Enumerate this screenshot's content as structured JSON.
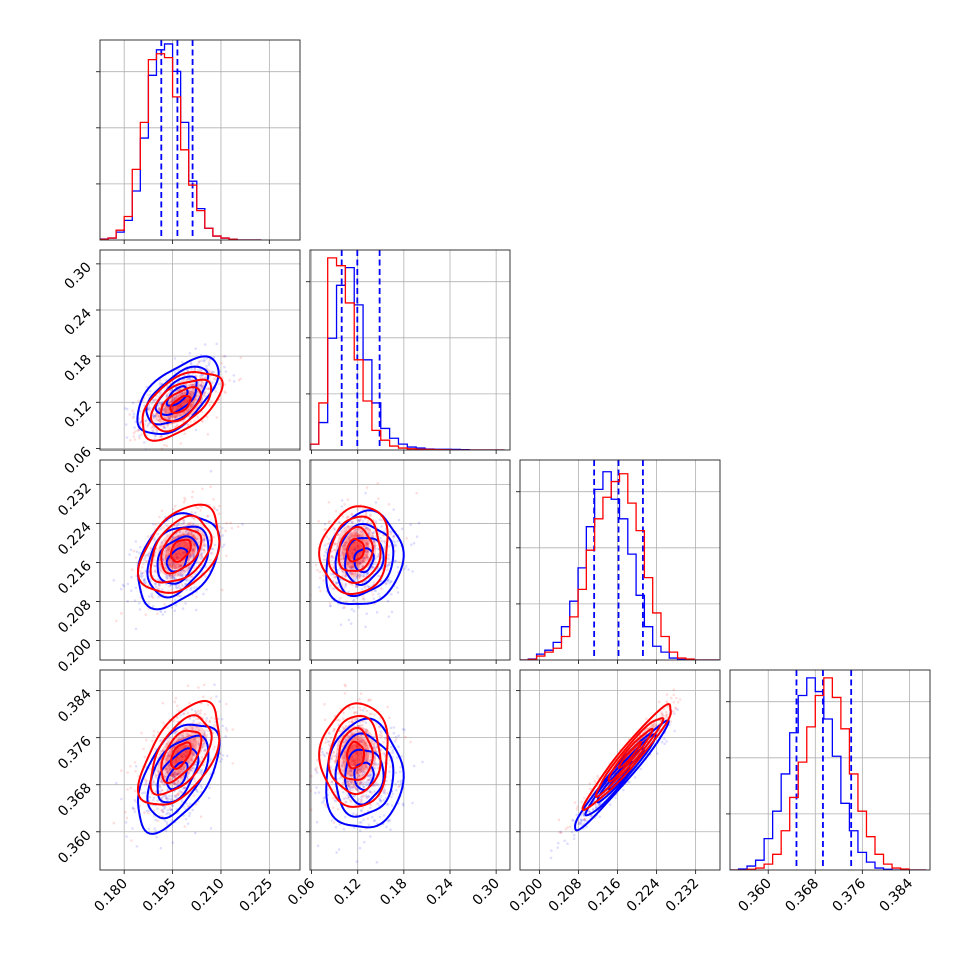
{
  "chart_data": {
    "type": "corner",
    "colors": {
      "series_a": "#0000ff",
      "series_b": "#ff0000"
    },
    "parameters": [
      {
        "range": [
          0.1725,
          0.2345
        ],
        "ticks": [
          "0.180",
          "0.195",
          "0.210",
          "0.225"
        ],
        "tick_values": [
          0.18,
          0.195,
          0.21,
          0.225
        ]
      },
      {
        "range": [
          0.058,
          0.318
        ],
        "ticks": [
          "0.06",
          "0.12",
          "0.18",
          "0.24",
          "0.30"
        ],
        "tick_values": [
          0.06,
          0.12,
          0.18,
          0.24,
          0.3
        ]
      },
      {
        "range": [
          0.196,
          0.237
        ],
        "ticks": [
          "0.200",
          "0.208",
          "0.216",
          "0.224",
          "0.232"
        ],
        "tick_values": [
          0.2,
          0.208,
          0.216,
          0.224,
          0.232
        ]
      },
      {
        "range": [
          0.3535,
          0.3875
        ],
        "ticks": [
          "0.360",
          "0.368",
          "0.376",
          "0.384"
        ],
        "tick_values": [
          0.36,
          0.368,
          0.376,
          0.384
        ]
      }
    ],
    "series": [
      {
        "color": "#0000ff",
        "means": [
          0.1965,
          0.128,
          0.2165,
          0.3695
        ],
        "sds": [
          0.0063,
          0.025,
          0.0048,
          0.0046
        ],
        "quantiles": [
          [
            0.1915,
            0.1965,
            0.2012
          ],
          [
            0.0992,
            0.1195,
            0.1485
          ],
          [
            0.2112,
            0.2162,
            0.2212
          ],
          [
            0.3648,
            0.3693,
            0.3741
          ]
        ],
        "histograms": [
          {
            "start": 0.1725,
            "width": 0.0025,
            "values": [
              0.005,
              0.01,
              0.04,
              0.1,
              0.25,
              0.52,
              0.84,
              0.97,
              1.0,
              0.86,
              0.6,
              0.3,
              0.16,
              0.06,
              0.02,
              0.01,
              0.004,
              0.0,
              0.0,
              0.0
            ]
          },
          {
            "start": 0.058,
            "width": 0.0115,
            "values": [
              0.03,
              0.14,
              0.57,
              0.84,
              0.93,
              0.74,
              0.46,
              0.24,
              0.11,
              0.06,
              0.03,
              0.015,
              0.01,
              0.005,
              0.004,
              0.004,
              0.003,
              0.002,
              0.0,
              0.0,
              0.0,
              0.0
            ]
          },
          {
            "start": 0.196,
            "width": 0.0017,
            "values": [
              0.0,
              0.005,
              0.03,
              0.05,
              0.09,
              0.17,
              0.3,
              0.47,
              0.68,
              0.87,
              0.96,
              0.82,
              0.72,
              0.54,
              0.33,
              0.17,
              0.07,
              0.04,
              0.01,
              0.003,
              0.0,
              0.0,
              0.0,
              0.0
            ]
          },
          {
            "start": 0.3535,
            "width": 0.00145,
            "values": [
              0.0,
              0.005,
              0.02,
              0.05,
              0.16,
              0.3,
              0.49,
              0.7,
              0.89,
              0.98,
              0.91,
              0.77,
              0.58,
              0.34,
              0.2,
              0.09,
              0.04,
              0.01,
              0.004,
              0.0,
              0.0,
              0.0,
              0.0
            ]
          }
        ],
        "correlations": [
          [
            1,
            0.6,
            0.35,
            0.55
          ],
          [
            0.6,
            1,
            0.15,
            0.05
          ],
          [
            0.35,
            0.15,
            1,
            0.97
          ],
          [
            0.55,
            0.05,
            0.97,
            1
          ]
        ]
      },
      {
        "color": "#ff0000",
        "means": [
          0.1975,
          0.117,
          0.2185,
          0.373
        ],
        "sds": [
          0.0062,
          0.022,
          0.0045,
          0.0044
        ],
        "quantiles": [],
        "histograms": [
          {
            "start": 0.1725,
            "width": 0.0025,
            "values": [
              0.004,
              0.01,
              0.05,
              0.12,
              0.36,
              0.6,
              0.92,
              0.95,
              0.93,
              0.73,
              0.46,
              0.28,
              0.15,
              0.06,
              0.02,
              0.01,
              0.004,
              0.0,
              0.0,
              0.0
            ]
          },
          {
            "start": 0.058,
            "width": 0.0115,
            "values": [
              0.03,
              0.24,
              0.98,
              0.94,
              0.75,
              0.46,
              0.25,
              0.1,
              0.05,
              0.02,
              0.01,
              0.006,
              0.004,
              0.003,
              0.002,
              0.001,
              0.0,
              0.0,
              0.0,
              0.0,
              0.0,
              0.0
            ]
          },
          {
            "start": 0.196,
            "width": 0.0017,
            "values": [
              0.0,
              0.003,
              0.02,
              0.04,
              0.06,
              0.12,
              0.22,
              0.36,
              0.56,
              0.72,
              0.83,
              0.91,
              0.95,
              0.8,
              0.66,
              0.42,
              0.24,
              0.12,
              0.04,
              0.01,
              0.005,
              0.0,
              0.0,
              0.0
            ]
          },
          {
            "start": 0.3535,
            "width": 0.00145,
            "values": [
              0.0,
              0.0,
              0.004,
              0.01,
              0.03,
              0.08,
              0.2,
              0.37,
              0.55,
              0.73,
              0.89,
              0.98,
              0.88,
              0.72,
              0.49,
              0.3,
              0.17,
              0.08,
              0.03,
              0.01,
              0.005,
              0.0,
              0.0
            ]
          }
        ],
        "correlations": [
          [
            1,
            0.55,
            0.4,
            0.55
          ],
          [
            0.55,
            1,
            0.12,
            0.05
          ],
          [
            0.4,
            0.12,
            1,
            0.96
          ],
          [
            0.55,
            0.05,
            0.96,
            1
          ]
        ]
      }
    ],
    "contour_levels_sigma": [
      0.5,
      1.0,
      1.5,
      2.0
    ],
    "grid": true,
    "legend": "none"
  }
}
